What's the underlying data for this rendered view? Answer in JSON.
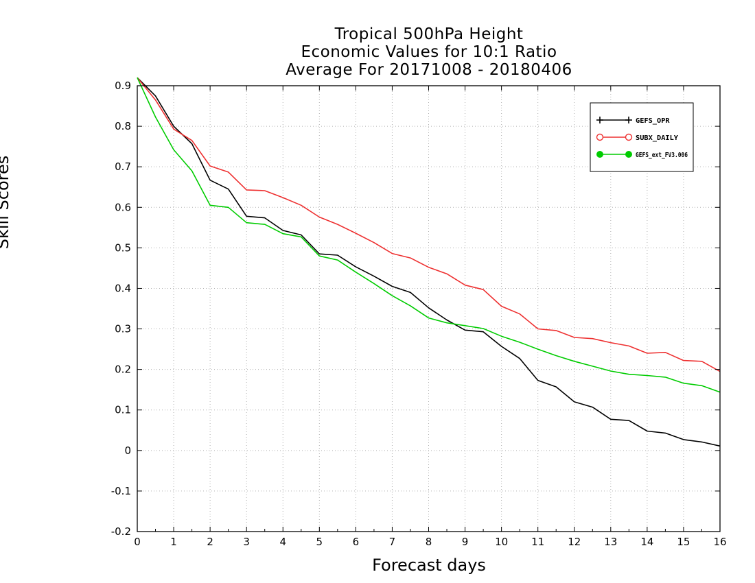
{
  "chart_data": {
    "type": "line",
    "title": [
      "Tropical 500hPa Height",
      "Economic Values for 10:1 Ratio",
      "Average For 20171008 - 20180406"
    ],
    "xlabel": "Forecast days",
    "ylabel": "Skill Scores",
    "xlim": [
      0,
      16
    ],
    "ylim": [
      -0.2,
      0.9
    ],
    "xticks": [
      "0",
      "1",
      "2",
      "3",
      "4",
      "5",
      "6",
      "7",
      "8",
      "9",
      "10",
      "11",
      "12",
      "13",
      "14",
      "15",
      "16"
    ],
    "yticks": [
      "0.9",
      "0.8",
      "0.7",
      "0.6",
      "0.5",
      "0.4",
      "0.3",
      "0.2",
      "0.1",
      "0",
      "-0.1",
      "-0.2"
    ],
    "grid": true,
    "legend_position": "top-right",
    "x": [
      0,
      0.5,
      1,
      1.5,
      2,
      2.5,
      3,
      3.5,
      4,
      4.5,
      5,
      5.5,
      6,
      6.5,
      7,
      7.5,
      8,
      8.5,
      9,
      9.5,
      10,
      10.5,
      11,
      11.5,
      12,
      12.5,
      13,
      13.5,
      14,
      14.5,
      15,
      15.5,
      16
    ],
    "series": [
      {
        "name": "GEFS_OPR",
        "color": "#000000",
        "marker": "plus",
        "values": [
          0.92,
          0.875,
          0.8,
          0.757,
          0.667,
          0.645,
          0.578,
          0.574,
          0.543,
          0.532,
          0.485,
          0.482,
          0.453,
          0.43,
          0.405,
          0.39,
          0.352,
          0.322,
          0.297,
          0.293,
          0.257,
          0.227,
          0.173,
          0.157,
          0.12,
          0.107,
          0.077,
          0.074,
          0.048,
          0.043,
          0.027,
          0.021,
          0.011
        ]
      },
      {
        "name": "SUBX_DAILY",
        "color": "#ee3030",
        "marker": "open-circle",
        "values": [
          0.92,
          0.865,
          0.793,
          0.765,
          0.702,
          0.687,
          0.643,
          0.641,
          0.624,
          0.605,
          0.576,
          0.558,
          0.536,
          0.513,
          0.486,
          0.475,
          0.452,
          0.436,
          0.408,
          0.397,
          0.356,
          0.337,
          0.3,
          0.296,
          0.279,
          0.276,
          0.266,
          0.258,
          0.24,
          0.242,
          0.222,
          0.22,
          0.195
        ]
      },
      {
        "name": "GEFS_ext_FV3.006",
        "color": "#00cc00",
        "marker": "filled-circle",
        "values": [
          0.92,
          0.823,
          0.742,
          0.69,
          0.605,
          0.6,
          0.562,
          0.558,
          0.535,
          0.527,
          0.48,
          0.47,
          0.44,
          0.412,
          0.382,
          0.357,
          0.327,
          0.315,
          0.308,
          0.301,
          0.282,
          0.267,
          0.25,
          0.234,
          0.22,
          0.208,
          0.196,
          0.188,
          0.185,
          0.181,
          0.166,
          0.16,
          0.144
        ]
      }
    ]
  }
}
